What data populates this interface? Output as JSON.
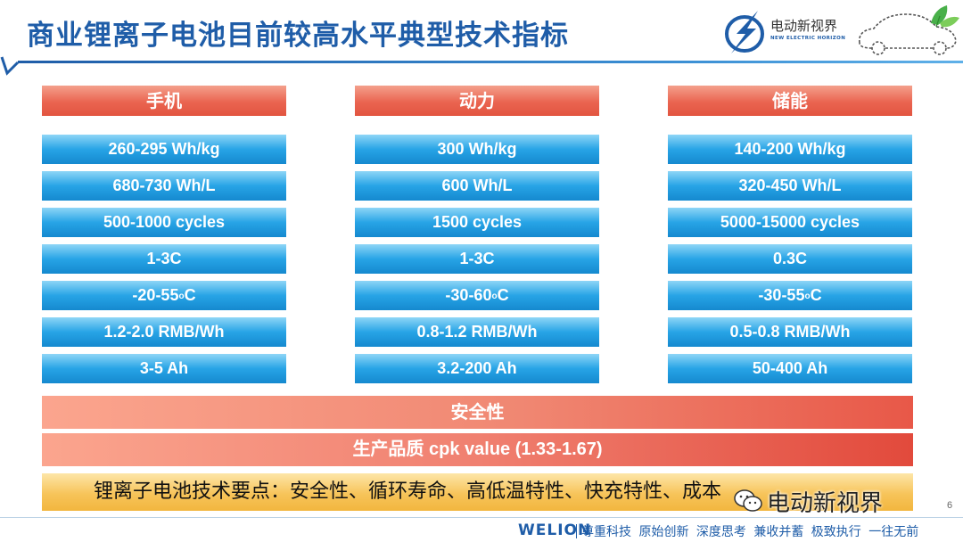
{
  "title": "商业锂离子电池目前较高水平典型技术指标",
  "logo": {
    "name": "电动新视界",
    "subtitle": "NEW ELECTRIC HORIZON"
  },
  "columns": [
    {
      "header": "手机",
      "rows": [
        "260-295 Wh/kg",
        "680-730 Wh/L",
        "500-1000 cycles",
        "1-3C",
        "-20-55oC",
        "1.2-2.0 RMB/Wh",
        "3-5 Ah"
      ]
    },
    {
      "header": "动力",
      "rows": [
        "300 Wh/kg",
        "600 Wh/L",
        "1500 cycles",
        "1-3C",
        "-30-60oC",
        "0.8-1.2 RMB/Wh",
        "3.2-200 Ah"
      ]
    },
    {
      "header": "储能",
      "rows": [
        "140-200 Wh/kg",
        "320-450 Wh/L",
        "5000-15000 cycles",
        "0.3C",
        "-30-55oC",
        "0.5-0.8 RMB/Wh",
        "50-400 Ah"
      ]
    }
  ],
  "bands": {
    "safety": "安全性",
    "quality": "生产品质 cpk value (1.33-1.67)",
    "key_points": "锂离子电池技术要点：安全性、循环寿命、高低温特性、快充特性、成本"
  },
  "watermark": "电动新视界",
  "page_number": "6",
  "footer": {
    "logo": "WELION",
    "motto": "尊重科技 原始创新 深度思考 兼收并蓄 极致执行 一往无前"
  },
  "colors": {
    "title": "#1f5da8",
    "header": "#e25540",
    "cell": "#1589cf",
    "keypoints": "#f7c45a"
  }
}
